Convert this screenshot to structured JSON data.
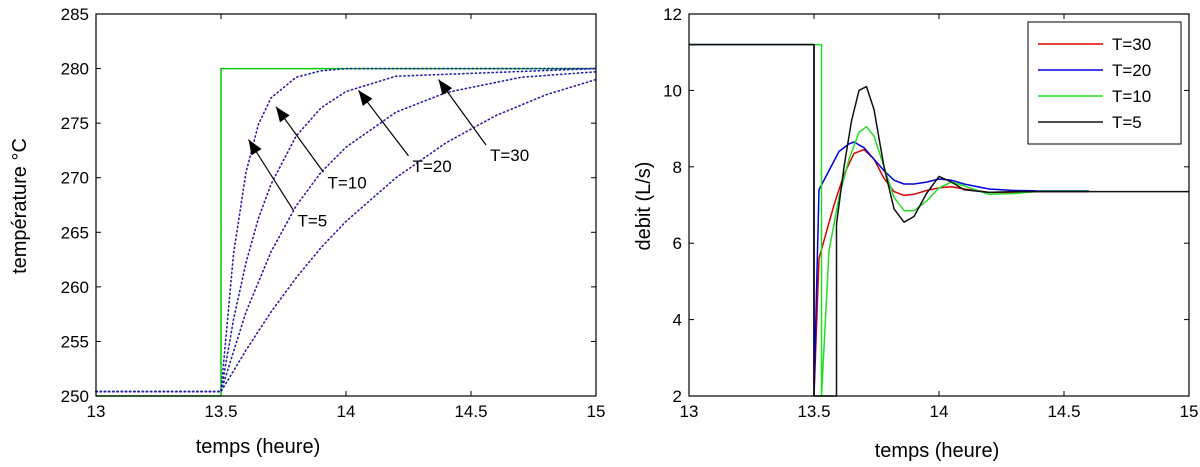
{
  "chart_data": [
    {
      "type": "line",
      "xlabel": "temps (heure)",
      "ylabel": "température °C",
      "xlim": [
        13,
        15
      ],
      "ylim": [
        250,
        285
      ],
      "xticks": [
        13,
        13.5,
        14,
        14.5,
        15
      ],
      "xtick_labels": [
        "13",
        "13.5",
        "14",
        "14.5",
        "15"
      ],
      "yticks": [
        250,
        255,
        260,
        265,
        270,
        275,
        280,
        285
      ],
      "ytick_labels": [
        "250",
        "255",
        "260",
        "265",
        "270",
        "275",
        "280",
        "285"
      ],
      "series": [
        {
          "color": "#00cc00",
          "style": "solid",
          "x": [
            13,
            13.5,
            13.5,
            15
          ],
          "y": [
            250,
            250,
            280,
            280
          ]
        },
        {
          "color": "#2222aa",
          "style": "dotted",
          "x": [
            13,
            13.5,
            13.55,
            13.6,
            13.65,
            13.7,
            13.8,
            13.9,
            14.0,
            15
          ],
          "y": [
            250.4,
            250.4,
            263.0,
            270.5,
            274.9,
            277.3,
            279.2,
            279.8,
            280,
            280
          ]
        },
        {
          "color": "#2222aa",
          "style": "dotted",
          "x": [
            13,
            13.5,
            13.55,
            13.6,
            13.65,
            13.7,
            13.8,
            13.9,
            14.0,
            14.2,
            15
          ],
          "y": [
            250.4,
            250.4,
            257.0,
            262.2,
            266.3,
            269.4,
            273.8,
            276.4,
            277.9,
            279.3,
            280
          ]
        },
        {
          "color": "#2222aa",
          "style": "dotted",
          "x": [
            13,
            13.5,
            13.6,
            13.7,
            13.8,
            13.9,
            14.0,
            14.2,
            14.4,
            14.7,
            15
          ],
          "y": [
            250.4,
            250.4,
            257.7,
            263.2,
            267.4,
            270.5,
            272.8,
            276.0,
            277.8,
            279.2,
            279.7
          ]
        },
        {
          "color": "#2222aa",
          "style": "dotted",
          "x": [
            13,
            13.5,
            13.6,
            13.7,
            13.8,
            13.9,
            14.0,
            14.2,
            14.4,
            14.6,
            14.8,
            15
          ],
          "y": [
            250.4,
            250.4,
            254.2,
            257.7,
            260.8,
            263.6,
            266.0,
            270.0,
            273.2,
            275.7,
            277.6,
            279.0
          ]
        }
      ],
      "annotations": [
        {
          "text": "T=5",
          "tip_x": 13.61,
          "tip_y": 273.5,
          "tail_x": 13.79,
          "tail_y": 267.0
        },
        {
          "text": "T=10",
          "tip_x": 13.72,
          "tip_y": 276.5,
          "tail_x": 13.91,
          "tail_y": 270.5
        },
        {
          "text": "T=20",
          "tip_x": 14.05,
          "tip_y": 278.0,
          "tail_x": 14.25,
          "tail_y": 272.0
        },
        {
          "text": "T=30",
          "tip_x": 14.37,
          "tip_y": 279.0,
          "tail_x": 14.56,
          "tail_y": 273.0
        }
      ]
    },
    {
      "type": "line",
      "xlabel": "temps (heure)",
      "ylabel": "debit (L/s)",
      "xlim": [
        13,
        15
      ],
      "ylim": [
        2,
        12
      ],
      "xticks": [
        13,
        13.5,
        14,
        14.5,
        15
      ],
      "xtick_labels": [
        "13",
        "13.5",
        "14",
        "14.5",
        "15"
      ],
      "yticks": [
        2,
        4,
        6,
        8,
        10,
        12
      ],
      "ytick_labels": [
        "2",
        "4",
        "6",
        "8",
        "10",
        "12"
      ],
      "legend": {
        "position": "top-right",
        "entries": [
          "T=30",
          "T=20",
          "T=10",
          "T=5"
        ]
      },
      "series": [
        {
          "name": "T=30",
          "color": "#dd0000",
          "x": [
            13,
            13.5,
            13.5,
            13.52,
            13.55,
            13.58,
            13.62,
            13.66,
            13.7,
            13.74,
            13.78,
            13.82,
            13.86,
            13.9,
            13.95,
            14.0,
            14.05,
            14.1,
            14.2,
            14.3,
            14.4,
            14.6
          ],
          "y": [
            11.2,
            11.2,
            2.0,
            5.6,
            6.3,
            7.0,
            7.8,
            8.35,
            8.45,
            8.2,
            7.7,
            7.35,
            7.25,
            7.28,
            7.38,
            7.45,
            7.48,
            7.42,
            7.33,
            7.33,
            7.35,
            7.35
          ]
        },
        {
          "name": "T=20",
          "color": "#0000dd",
          "x": [
            13,
            13.5,
            13.5,
            13.52,
            13.56,
            13.6,
            13.64,
            13.66,
            13.7,
            13.74,
            13.78,
            13.82,
            13.86,
            13.9,
            13.95,
            14.0,
            14.05,
            14.1,
            14.2,
            14.3,
            14.4,
            14.6
          ],
          "y": [
            11.2,
            11.2,
            2.0,
            7.4,
            7.9,
            8.4,
            8.6,
            8.65,
            8.5,
            8.2,
            7.9,
            7.65,
            7.55,
            7.55,
            7.6,
            7.68,
            7.65,
            7.55,
            7.42,
            7.38,
            7.37,
            7.37
          ]
        },
        {
          "name": "T=10",
          "color": "#22dd22",
          "x": [
            13,
            13.53,
            13.53,
            13.56,
            13.6,
            13.64,
            13.68,
            13.71,
            13.74,
            13.78,
            13.82,
            13.86,
            13.9,
            13.95,
            14.0,
            14.05,
            14.1,
            14.2,
            14.3,
            14.4,
            14.6
          ],
          "y": [
            11.2,
            11.2,
            2.0,
            5.8,
            7.2,
            8.2,
            8.9,
            9.05,
            8.8,
            8.0,
            7.2,
            6.85,
            6.85,
            7.1,
            7.45,
            7.6,
            7.5,
            7.28,
            7.3,
            7.36,
            7.36
          ]
        },
        {
          "name": "T=5",
          "color": "#111111",
          "x": [
            13,
            13.5,
            13.5,
            13.59,
            13.59,
            13.62,
            13.65,
            13.68,
            13.71,
            13.74,
            13.78,
            13.82,
            13.86,
            13.9,
            13.95,
            14.0,
            14.05,
            14.1,
            14.2,
            14.3,
            15
          ],
          "y": [
            11.2,
            11.2,
            2.0,
            2.0,
            6.5,
            8.0,
            9.2,
            10.0,
            10.1,
            9.5,
            8.0,
            6.9,
            6.55,
            6.7,
            7.3,
            7.75,
            7.6,
            7.4,
            7.33,
            7.35,
            7.35
          ]
        }
      ]
    }
  ]
}
